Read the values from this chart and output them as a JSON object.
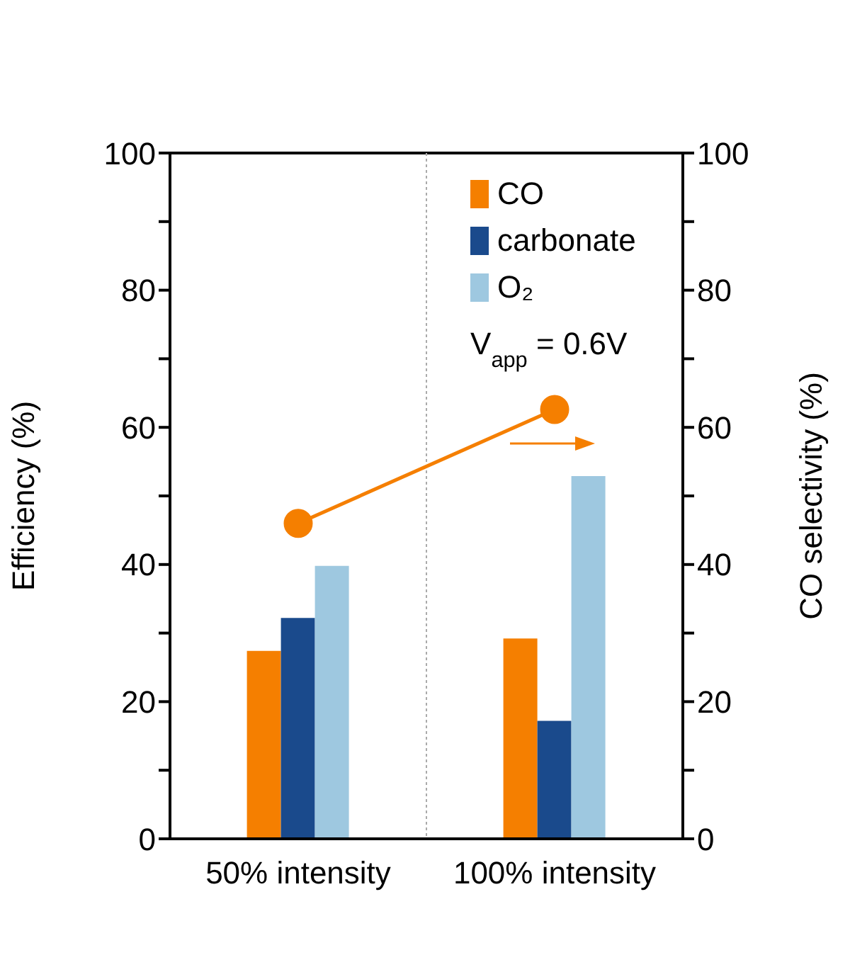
{
  "chart_data": {
    "type": "bar",
    "categories": [
      "50% intensity",
      "100% intensity"
    ],
    "ylabel": "Efficiency (%)",
    "y2label": "CO selectivity (%)",
    "series": [
      {
        "name": "CO",
        "color": "#f57f00",
        "values": [
          27.4,
          29.2
        ]
      },
      {
        "name": "carbonate",
        "color": "#1a4a8c",
        "values": [
          32.2,
          17.2
        ]
      },
      {
        "name": "O₂",
        "color": "#9ec8e0",
        "values": [
          39.8,
          52.9
        ]
      },
      {
        "type": "line",
        "axis": "y2",
        "color": "#f57f00",
        "marker": "circle",
        "values": [
          46.0,
          62.6
        ]
      }
    ],
    "ylim": [
      0,
      100
    ],
    "yticks": [
      0,
      {
        "value": 10,
        "label": null
      },
      20,
      {
        "value": 30,
        "label": null
      },
      40,
      {
        "value": 50,
        "label": null
      },
      60,
      {
        "value": 70,
        "label": null
      },
      80,
      {
        "value": 90,
        "label": null
      },
      100
    ],
    "y2lim": [
      0,
      100
    ],
    "y2ticks": [
      0,
      {
        "value": 10,
        "label": null
      },
      20,
      {
        "value": 30,
        "label": null
      },
      40,
      {
        "value": 50,
        "label": null
      },
      60,
      {
        "value": 70,
        "label": null
      },
      80,
      {
        "value": 90,
        "label": null
      },
      100
    ],
    "annotations": [
      "V$_{app}$ = 0.6V"
    ],
    "legend": "top right",
    "grid": false
  }
}
